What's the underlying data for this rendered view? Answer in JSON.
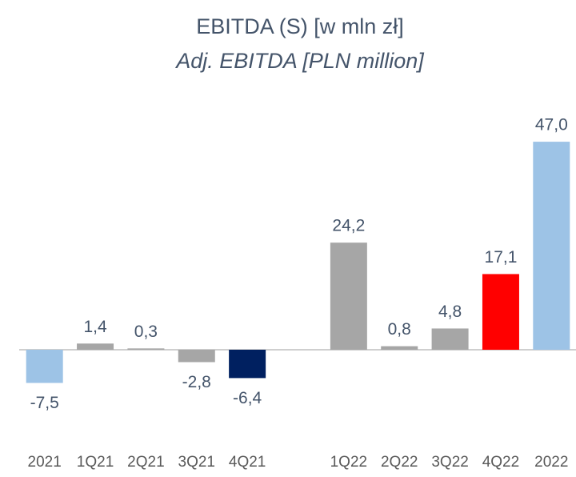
{
  "chart_data": {
    "type": "bar",
    "title": "EBITDA (S) [w mln zł]",
    "subtitle": "Adj. EBITDA [PLN million]",
    "categories": [
      "2021",
      "1Q21",
      "2Q21",
      "3Q21",
      "4Q21",
      null,
      "1Q22",
      "2Q22",
      "3Q22",
      "4Q22",
      "2022"
    ],
    "values": [
      -7.5,
      1.4,
      0.3,
      -2.8,
      -6.4,
      null,
      24.2,
      0.8,
      4.8,
      17.1,
      47.0
    ],
    "value_labels": [
      "-7,5",
      "1,4",
      "0,3",
      "-2,8",
      "-6,4",
      null,
      "24,2",
      "0,8",
      "4,8",
      "17,1",
      "47,0"
    ],
    "colors": [
      "#9dc3e6",
      "#a6a6a6",
      "#a6a6a6",
      "#a6a6a6",
      "#002060",
      null,
      "#a6a6a6",
      "#a6a6a6",
      "#a6a6a6",
      "#ff0000",
      "#9dc3e6"
    ],
    "ylim": [
      -20,
      50
    ]
  }
}
